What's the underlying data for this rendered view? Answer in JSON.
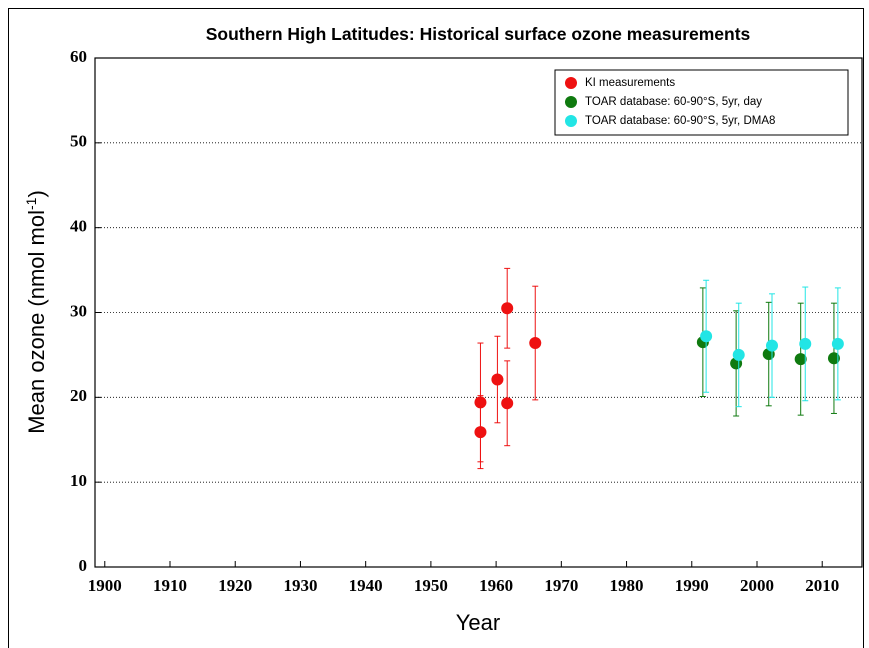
{
  "chart_data": {
    "type": "scatter",
    "title": "Southern High Latitudes: Historical surface ozone measurements",
    "xlabel": "Year",
    "ylabel_parts": [
      "Mean ozone (nmol mol",
      "-1",
      ")"
    ],
    "xlim": [
      1898.5,
      2016.1
    ],
    "ylim": [
      0,
      60
    ],
    "xticks": [
      1900,
      1910,
      1920,
      1930,
      1940,
      1950,
      1960,
      1970,
      1980,
      1990,
      2000,
      2010
    ],
    "yticks": [
      0,
      10,
      20,
      30,
      40,
      50,
      60
    ],
    "grid": true,
    "legend": "upper right",
    "series": [
      {
        "name": "KI measurements",
        "color": "#ee1111",
        "x": [
          1957.6,
          1957.6,
          1960.2,
          1961.7,
          1961.7,
          1966.0
        ],
        "values": [
          19.4,
          15.9,
          22.1,
          30.5,
          19.3,
          26.4
        ],
        "errors": [
          7.0,
          4.3,
          5.1,
          4.7,
          5.0,
          6.7
        ]
      },
      {
        "name": "TOAR database: 60-90°S, 5yr, day",
        "color": "#0f7a0f",
        "x": [
          1991.7,
          1996.8,
          2001.8,
          2006.7,
          2011.8
        ],
        "values": [
          26.5,
          24.0,
          25.1,
          24.5,
          24.6
        ],
        "errors": [
          6.4,
          6.2,
          6.1,
          6.6,
          6.5
        ]
      },
      {
        "name": "TOAR database: 60-90°S, 5yr, DMA8",
        "color": "#22e5e5",
        "x": [
          1992.2,
          1997.2,
          2002.3,
          2007.4,
          2012.4
        ],
        "values": [
          27.2,
          25.0,
          26.1,
          26.3,
          26.3
        ],
        "errors": [
          6.6,
          6.1,
          6.1,
          6.7,
          6.6
        ]
      }
    ]
  }
}
